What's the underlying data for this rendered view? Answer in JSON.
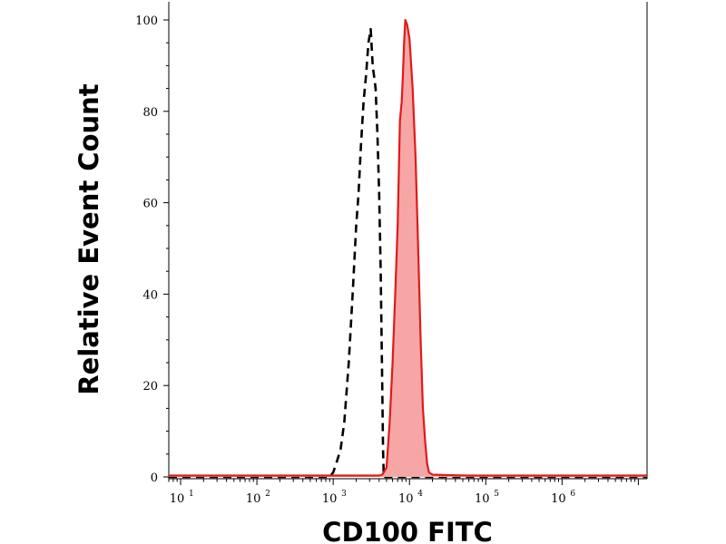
{
  "chart_data": {
    "type": "area",
    "xlabel": "CD100 FITC",
    "ylabel": "Relative Event Count",
    "xscale": "log",
    "xlim": [
      7,
      13000000
    ],
    "ylim": [
      0,
      100
    ],
    "x_ticks": [
      {
        "value": 10,
        "base": "10",
        "exp": "1"
      },
      {
        "value": 100,
        "base": "10",
        "exp": "2"
      },
      {
        "value": 1000,
        "base": "10",
        "exp": "3"
      },
      {
        "value": 10000,
        "base": "10",
        "exp": "4"
      },
      {
        "value": 100000,
        "base": "10",
        "exp": "5"
      },
      {
        "value": 1000000,
        "base": "10",
        "exp": "6"
      }
    ],
    "y_ticks": [
      0,
      20,
      40,
      60,
      80,
      100
    ],
    "series": [
      {
        "role": "control",
        "color": "#000000",
        "line_style": "dashed",
        "fill": false,
        "points": [
          [
            7,
            0
          ],
          [
            700,
            0
          ],
          [
            900,
            0
          ],
          [
            1000,
            1
          ],
          [
            1100,
            3
          ],
          [
            1250,
            6
          ],
          [
            1400,
            12
          ],
          [
            1600,
            25
          ],
          [
            1800,
            40
          ],
          [
            2000,
            55
          ],
          [
            2150,
            62
          ],
          [
            2300,
            72
          ],
          [
            2500,
            82
          ],
          [
            2700,
            88
          ],
          [
            2900,
            95
          ],
          [
            3100,
            98
          ],
          [
            3300,
            90
          ],
          [
            3600,
            85
          ],
          [
            3800,
            75
          ],
          [
            4000,
            62
          ],
          [
            4200,
            45
          ],
          [
            4400,
            20
          ],
          [
            4500,
            6
          ],
          [
            4600,
            0
          ],
          [
            13000000,
            0
          ]
        ]
      },
      {
        "role": "stained",
        "color": "#e01a1a",
        "fill_color": "#f7a6a6",
        "line_style": "solid",
        "fill": true,
        "points": [
          [
            7,
            0.3
          ],
          [
            4000,
            0.3
          ],
          [
            4400,
            0.5
          ],
          [
            5000,
            2
          ],
          [
            5500,
            12
          ],
          [
            6000,
            25
          ],
          [
            6500,
            40
          ],
          [
            7000,
            55
          ],
          [
            7500,
            78
          ],
          [
            7900,
            82
          ],
          [
            8200,
            88
          ],
          [
            8500,
            95
          ],
          [
            8800,
            100
          ],
          [
            9300,
            99
          ],
          [
            10000,
            96
          ],
          [
            11000,
            85
          ],
          [
            12000,
            70
          ],
          [
            13000,
            50
          ],
          [
            14000,
            30
          ],
          [
            15000,
            15
          ],
          [
            16000,
            8
          ],
          [
            17000,
            3
          ],
          [
            18000,
            1
          ],
          [
            20000,
            0.5
          ],
          [
            30000,
            0.4
          ],
          [
            60000,
            0.3
          ],
          [
            13000000,
            0.3
          ]
        ]
      }
    ]
  }
}
